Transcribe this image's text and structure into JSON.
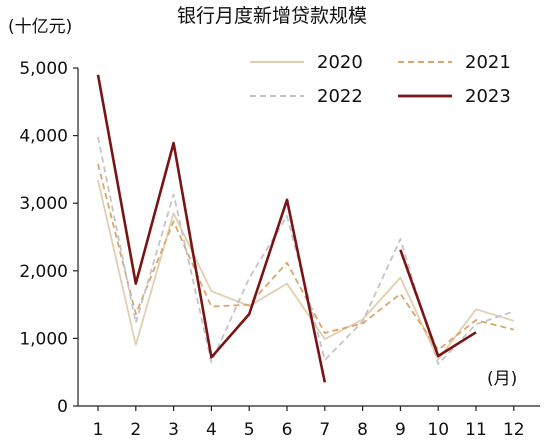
{
  "chart_data": {
    "type": "line",
    "title": "银行月度新增贷款规模",
    "y_unit_label": "(十亿元)",
    "x_unit_label": "(月)",
    "x": [
      1,
      2,
      3,
      4,
      5,
      6,
      7,
      8,
      9,
      10,
      11,
      12
    ],
    "x_tick_labels": [
      "1",
      "2",
      "3",
      "4",
      "5",
      "6",
      "7",
      "8",
      "9",
      "10",
      "11",
      "12"
    ],
    "ylim": [
      0,
      5000
    ],
    "y_ticks": [
      0,
      1000,
      2000,
      3000,
      4000,
      5000
    ],
    "y_tick_labels": [
      "0",
      "1,000",
      "2,000",
      "3,000",
      "4,000",
      "5,000"
    ],
    "grid": false,
    "legend_position": "top-right",
    "series": [
      {
        "name": "2020",
        "color": "#e2cfb0",
        "dash": "solid",
        "values": [
          3340,
          905,
          2850,
          1700,
          1480,
          1810,
          990,
          1280,
          1900,
          690,
          1430,
          1260
        ]
      },
      {
        "name": "2021",
        "color": "#d9a66c",
        "dash": "dashed",
        "values": [
          3580,
          1360,
          2730,
          1470,
          1500,
          2120,
          1080,
          1220,
          1660,
          830,
          1270,
          1130
        ]
      },
      {
        "name": "2022",
        "color": "#c4c4c8",
        "dash": "dashed",
        "values": [
          3980,
          1230,
          3130,
          650,
          1890,
          2810,
          680,
          1250,
          2470,
          620,
          1210,
          1400
        ]
      },
      {
        "name": "2023",
        "color": "#7a1414",
        "dash": "solid",
        "values": [
          4900,
          1810,
          3890,
          720,
          1360,
          3050,
          350,
          null,
          2310,
          740,
          1090,
          null
        ]
      }
    ]
  }
}
